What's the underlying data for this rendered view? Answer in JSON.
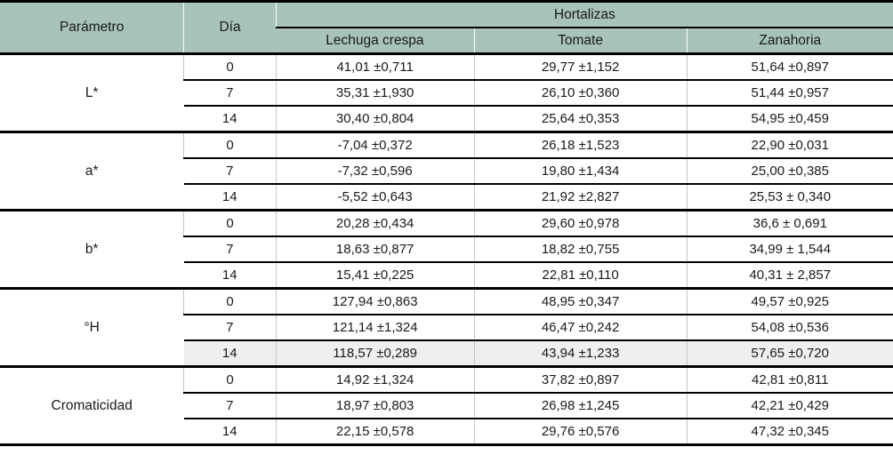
{
  "table": {
    "header": {
      "parametro": "Parámetro",
      "dia": "Día",
      "group": "Hortalizas",
      "columns": [
        "Lechuga crespa",
        "Tomate",
        "Zanahoria"
      ]
    },
    "colors": {
      "header_bg": "#a8c2bc",
      "row_highlight_bg": "#efefef",
      "rule_color": "#000000",
      "column_divider": "#c6c6c6"
    },
    "groups": [
      {
        "param": "L*",
        "rows": [
          {
            "day": "0",
            "values": [
              "41,01 ±0,711",
              "29,77 ±1,152",
              "51,64 ±0,897"
            ]
          },
          {
            "day": "7",
            "values": [
              "35,31 ±1,930",
              "26,10 ±0,360",
              "51,44 ±0,957"
            ]
          },
          {
            "day": "14",
            "values": [
              "30,40 ±0,804",
              "25,64 ±0,353",
              "54,95 ±0,459"
            ]
          }
        ]
      },
      {
        "param": "a*",
        "rows": [
          {
            "day": "0",
            "values": [
              "-7,04 ±0,372",
              "26,18 ±1,523",
              "22,90 ±0,031"
            ]
          },
          {
            "day": "7",
            "values": [
              "-7,32 ±0,596",
              "19,80 ±1,434",
              "25,00 ±0,385"
            ]
          },
          {
            "day": "14",
            "values": [
              "-5,52 ±0,643",
              "21,92 ±2,827",
              "25,53 ± 0,340"
            ]
          }
        ]
      },
      {
        "param": "b*",
        "rows": [
          {
            "day": "0",
            "values": [
              "20,28 ±0,434",
              "29,60 ±0,978",
              "36,6 ± 0,691"
            ]
          },
          {
            "day": "7",
            "values": [
              "18,63 ±0,877",
              "18,82 ±0,755",
              "34,99 ± 1,544"
            ]
          },
          {
            "day": "14",
            "values": [
              "15,41 ±0,225",
              "22,81 ±0,110",
              "40,31 ± 2,857"
            ]
          }
        ]
      },
      {
        "param": "°H",
        "rows": [
          {
            "day": "0",
            "values": [
              "127,94 ±0,863",
              "48,95 ±0,347",
              "49,57 ±0,925"
            ]
          },
          {
            "day": "7",
            "values": [
              "121,14 ±1,324",
              "46,47 ±0,242",
              "54,08 ±0,536"
            ]
          },
          {
            "day": "14",
            "values": [
              "118,57 ±0,289",
              "43,94 ±1,233",
              "57,65 ±0,720"
            ],
            "highlighted": true
          }
        ]
      },
      {
        "param": "Cromaticidad",
        "rows": [
          {
            "day": "0",
            "values": [
              "14,92 ±1,324",
              "37,82 ±0,897",
              "42,81 ±0,811"
            ]
          },
          {
            "day": "7",
            "values": [
              "18,97 ±0,803",
              "26,98 ±1,245",
              "42,21 ±0,429"
            ]
          },
          {
            "day": "14",
            "values": [
              "22,15 ±0,578",
              "29,76 ±0,576",
              "47,32 ±0,345"
            ]
          }
        ]
      }
    ]
  }
}
